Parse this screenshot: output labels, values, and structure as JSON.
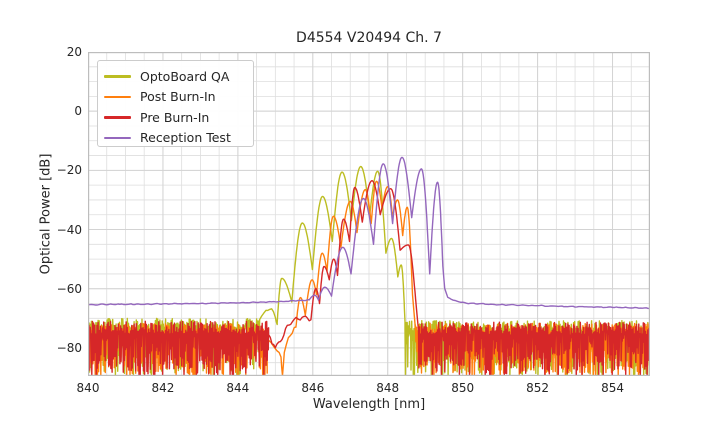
{
  "figure": {
    "background": "#ffffff"
  },
  "chart_data": {
    "type": "line",
    "title": "D4554 V20494 Ch. 7",
    "xlabel": "Wavelength [nm]",
    "ylabel": "Optical Power [dB]",
    "xlim": [
      840,
      855
    ],
    "ylim": [
      -89.5,
      20
    ],
    "xticks": [
      840,
      842,
      844,
      846,
      848,
      850,
      852,
      854
    ],
    "ytick_values": [
      20,
      0,
      -20,
      -40,
      -60,
      -80
    ],
    "ytick_labels": [
      "20",
      "0",
      "−20",
      "−40",
      "−60",
      "−80"
    ],
    "grid": {
      "grid_on": true,
      "minor_x_step": 0.5,
      "minor_y_step": 5,
      "major_x_step": 2,
      "major_y_step": 20,
      "minor_color": "#dedede",
      "major_color": "#d3d3d3",
      "spine_color": "#bdbdbd"
    },
    "legend": {
      "position": "upper-left"
    },
    "series": [
      {
        "name": "OptoBoard QA",
        "color": "#bcbd22",
        "segments": [
          {
            "type": "noise",
            "x0": 840,
            "x1": 844.58,
            "top": -71.8,
            "jitter": 1.8,
            "depth": 17
          },
          {
            "type": "path",
            "wiggle": 0.8,
            "points": [
              [
                844.58,
                -70.5
              ],
              [
                844.75,
                -67.5
              ],
              [
                844.9,
                -66.8
              ],
              [
                845.0,
                -70.0
              ],
              [
                845.05,
                -71.5
              ]
            ]
          },
          {
            "type": "arches",
            "points": [
              [
                845.05,
                -71.5
              ],
              [
                845.17,
                -56.5
              ],
              [
                845.44,
                -64.5
              ],
              [
                845.72,
                -37.8
              ],
              [
                845.99,
                -53.5
              ],
              [
                846.26,
                -28.8
              ],
              [
                846.52,
                -44.0
              ],
              [
                846.78,
                -20.6
              ],
              [
                847.03,
                -37.0
              ],
              [
                847.28,
                -18.7
              ],
              [
                847.52,
                -35.0
              ],
              [
                847.73,
                -20.3
              ],
              [
                847.95,
                -48.0
              ],
              [
                848.1,
                -43.0
              ],
              [
                848.27,
                -56.0
              ],
              [
                848.36,
                -52.0
              ],
              [
                848.46,
                -71.0
              ]
            ]
          },
          {
            "type": "noise",
            "x0": 848.46,
            "x1": 855,
            "top": -72.8,
            "jitter": 2.0,
            "depth": 17
          }
        ]
      },
      {
        "name": "Post Burn-In",
        "color": "#ff7f0e",
        "segments": [
          {
            "type": "noise",
            "x0": 840,
            "x1": 844.78,
            "top": -74.0,
            "jitter": 2.2,
            "depth": 16
          },
          {
            "type": "path",
            "wiggle": 0.9,
            "points": [
              [
                844.78,
                -77.0
              ],
              [
                845.0,
                -80.0
              ],
              [
                845.15,
                -83.0
              ],
              [
                845.19,
                -89.2
              ],
              [
                845.24,
                -82.0
              ],
              [
                845.35,
                -76.0
              ],
              [
                845.55,
                -73.0
              ]
            ]
          },
          {
            "type": "arches",
            "points": [
              [
                845.55,
                -73.0
              ],
              [
                845.67,
                -63.0
              ],
              [
                845.8,
                -69.0
              ],
              [
                845.98,
                -57.0
              ],
              [
                846.1,
                -62.0
              ],
              [
                846.25,
                -48.0
              ],
              [
                846.38,
                -54.0
              ],
              [
                846.55,
                -35.5
              ],
              [
                846.75,
                -46.0
              ],
              [
                847.0,
                -30.5
              ],
              [
                847.18,
                -41.0
              ],
              [
                847.4,
                -26.5
              ],
              [
                847.56,
                -38.0
              ],
              [
                847.7,
                -23.7
              ],
              [
                847.85,
                -33.0
              ],
              [
                848.0,
                -25.5
              ],
              [
                848.13,
                -36.0
              ],
              [
                848.26,
                -30.0
              ],
              [
                848.4,
                -42.0
              ],
              [
                848.52,
                -32.5
              ],
              [
                848.66,
                -62.0
              ]
            ]
          },
          {
            "type": "path",
            "wiggle": 0.5,
            "points": [
              [
                848.66,
                -62.0
              ],
              [
                848.74,
                -74.0
              ]
            ]
          },
          {
            "type": "noise",
            "x0": 848.74,
            "x1": 855,
            "top": -74.0,
            "jitter": 2.3,
            "depth": 16
          }
        ]
      },
      {
        "name": "Pre Burn-In",
        "color": "#d62728",
        "segments": [
          {
            "type": "noise",
            "x0": 840,
            "x1": 844.82,
            "top": -73.2,
            "jitter": 2.2,
            "depth": 16
          },
          {
            "type": "path",
            "wiggle": 1.1,
            "points": [
              [
                844.82,
                -76.0
              ],
              [
                845.0,
                -79.5
              ],
              [
                845.18,
                -77.0
              ],
              [
                845.32,
                -72.5
              ],
              [
                845.5,
                -70.5
              ],
              [
                845.72,
                -69.5
              ],
              [
                845.95,
                -70.5
              ]
            ]
          },
          {
            "type": "arches",
            "points": [
              [
                845.95,
                -70.5
              ],
              [
                846.08,
                -60.0
              ],
              [
                846.18,
                -65.0
              ],
              [
                846.3,
                -52.5
              ],
              [
                846.44,
                -57.0
              ],
              [
                846.56,
                -50.0
              ],
              [
                846.66,
                -55.5
              ],
              [
                846.82,
                -36.5
              ],
              [
                846.98,
                -44.0
              ],
              [
                847.12,
                -25.8
              ],
              [
                847.32,
                -37.5
              ],
              [
                847.58,
                -23.5
              ],
              [
                847.8,
                -35.0
              ],
              [
                848.08,
                -26.2
              ],
              [
                848.33,
                -47.0
              ],
              [
                848.55,
                -45.2
              ],
              [
                848.74,
                -63.0
              ]
            ]
          },
          {
            "type": "path",
            "wiggle": 0.5,
            "points": [
              [
                848.74,
                -63.0
              ],
              [
                848.82,
                -74.0
              ]
            ]
          },
          {
            "type": "noise",
            "x0": 848.82,
            "x1": 855,
            "top": -73.5,
            "jitter": 2.2,
            "depth": 16
          }
        ]
      },
      {
        "name": "Reception Test",
        "color": "#9467bd",
        "segments": [
          {
            "type": "path",
            "wiggle": 0.2,
            "points": [
              [
                840,
                -65.4
              ],
              [
                841.5,
                -65.2
              ],
              [
                843.0,
                -65.0
              ],
              [
                844.2,
                -64.7
              ],
              [
                845.2,
                -64.3
              ],
              [
                845.9,
                -63.8
              ]
            ]
          },
          {
            "type": "arches",
            "points": [
              [
                845.9,
                -63.8
              ],
              [
                846.05,
                -62.2
              ],
              [
                846.15,
                -63.8
              ],
              [
                846.32,
                -59.5
              ],
              [
                846.5,
                -62.5
              ],
              [
                846.8,
                -46.0
              ],
              [
                847.02,
                -55.0
              ],
              [
                847.35,
                -29.5
              ],
              [
                847.62,
                -45.0
              ],
              [
                847.88,
                -17.8
              ],
              [
                848.13,
                -38.0
              ],
              [
                848.38,
                -15.6
              ],
              [
                848.64,
                -36.0
              ],
              [
                848.9,
                -19.5
              ],
              [
                849.12,
                -55.0
              ],
              [
                849.33,
                -24.0
              ],
              [
                849.47,
                -52.0
              ]
            ]
          },
          {
            "type": "path",
            "wiggle": 0.2,
            "points": [
              [
                849.47,
                -52.0
              ],
              [
                849.52,
                -60.0
              ],
              [
                849.6,
                -62.8
              ],
              [
                849.75,
                -64.0
              ],
              [
                850.1,
                -64.9
              ],
              [
                851.0,
                -65.4
              ],
              [
                852.5,
                -65.9
              ],
              [
                854.0,
                -66.3
              ],
              [
                855.0,
                -66.6
              ]
            ]
          }
        ]
      }
    ]
  }
}
